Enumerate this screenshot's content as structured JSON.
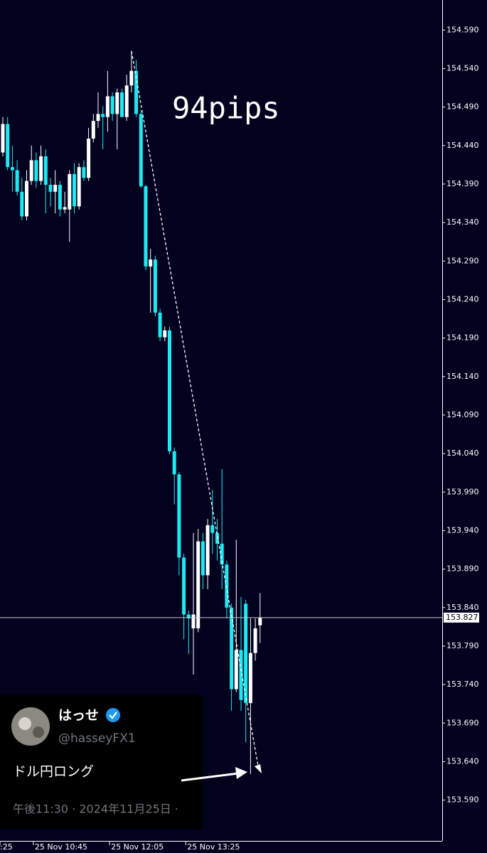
{
  "chart_data": {
    "type": "candlestick",
    "annotation": "94pips",
    "categories": [
      ":25",
      null,
      null,
      null,
      null,
      null,
      null,
      "25 Nov 10:45",
      null,
      null,
      null,
      null,
      null,
      null,
      null,
      null,
      null,
      null,
      null,
      null,
      null,
      null,
      null,
      "25 Nov 12:05",
      null,
      null,
      null,
      null,
      null,
      null,
      null,
      null,
      null,
      null,
      null,
      null,
      null,
      null,
      null,
      "25 Nov 13:25",
      null,
      null,
      null,
      null,
      null,
      null,
      null,
      null,
      null,
      null,
      null,
      null,
      null,
      null,
      null
    ],
    "open": [
      154.431,
      154.468,
      154.412,
      154.408,
      154.38,
      154.348,
      154.394,
      154.421,
      154.394,
      154.426,
      154.389,
      154.38,
      154.389,
      154.357,
      154.357,
      154.403,
      154.361,
      154.412,
      154.398,
      154.449,
      154.472,
      154.481,
      154.477,
      154.504,
      154.481,
      154.509,
      154.477,
      154.518,
      154.537,
      154.481,
      154.387,
      154.283,
      154.292,
      154.223,
      154.191,
      154.2,
      154.043,
      154.013,
      153.905,
      153.831,
      153.813,
      153.813,
      153.926,
      153.882,
      153.947,
      153.937,
      153.923,
      153.896,
      153.84,
      153.734,
      153.785,
      153.845,
      153.716,
      153.781,
      153.817
    ],
    "high": [
      154.477,
      154.477,
      154.44,
      154.421,
      154.398,
      154.408,
      154.44,
      154.431,
      154.44,
      154.435,
      154.398,
      154.408,
      154.394,
      154.38,
      154.408,
      154.417,
      154.417,
      154.421,
      154.463,
      154.481,
      154.509,
      154.491,
      154.537,
      154.509,
      154.514,
      154.514,
      154.532,
      154.563,
      154.551,
      154.486,
      154.389,
      154.306,
      154.297,
      154.228,
      154.205,
      154.205,
      154.048,
      154.016,
      153.91,
      153.836,
      153.937,
      153.942,
      153.937,
      153.955,
      153.993,
      153.955,
      154.02,
      153.901,
      153.845,
      153.928,
      153.854,
      153.85,
      153.826,
      153.826,
      153.859
    ],
    "low": [
      154.426,
      154.408,
      154.38,
      154.375,
      154.343,
      154.343,
      154.389,
      154.385,
      154.389,
      154.352,
      154.361,
      154.352,
      154.348,
      154.352,
      154.315,
      154.352,
      154.357,
      154.394,
      154.394,
      154.444,
      154.463,
      154.435,
      154.458,
      154.472,
      154.435,
      154.477,
      154.472,
      154.509,
      154.477,
      154.385,
      154.278,
      154.223,
      154.218,
      154.186,
      154.186,
      154.039,
      153.974,
      153.882,
      153.799,
      153.78,
      153.753,
      153.808,
      153.864,
      153.864,
      153.91,
      153.901,
      153.864,
      153.826,
      153.706,
      153.73,
      153.706,
      153.665,
      153.624,
      153.771,
      153.794
    ],
    "close": [
      154.468,
      154.412,
      154.408,
      154.38,
      154.348,
      154.394,
      154.421,
      154.394,
      154.426,
      154.389,
      154.38,
      154.389,
      154.357,
      154.36,
      154.403,
      154.361,
      154.412,
      154.398,
      154.449,
      154.472,
      154.481,
      154.477,
      154.504,
      154.481,
      154.509,
      154.477,
      154.518,
      154.537,
      154.481,
      154.387,
      154.283,
      154.292,
      154.223,
      154.191,
      154.2,
      154.043,
      154.013,
      153.905,
      153.831,
      153.826,
      153.831,
      153.926,
      153.882,
      153.947,
      153.937,
      153.923,
      153.896,
      153.84,
      153.734,
      153.785,
      153.72,
      153.716,
      153.781,
      153.813,
      153.827
    ],
    "up_color": "#ffffff",
    "down_color": "#1de9f2",
    "current_price": 153.827,
    "ylim": [
      153.537,
      154.629
    ],
    "yticks": [
      {
        "value": 154.59,
        "label": "154.590"
      },
      {
        "value": 154.54,
        "label": "154.540"
      },
      {
        "value": 154.49,
        "label": "154.490"
      },
      {
        "value": 154.44,
        "label": "154.440"
      },
      {
        "value": 154.39,
        "label": "154.390"
      },
      {
        "value": 154.34,
        "label": "154.340"
      },
      {
        "value": 154.29,
        "label": "154.290"
      },
      {
        "value": 154.24,
        "label": "154.240"
      },
      {
        "value": 154.19,
        "label": "154.190"
      },
      {
        "value": 154.14,
        "label": "154.140"
      },
      {
        "value": 154.09,
        "label": "154.090"
      },
      {
        "value": 154.04,
        "label": "154.040"
      },
      {
        "value": 153.99,
        "label": "153.990"
      },
      {
        "value": 153.94,
        "label": "153.940"
      },
      {
        "value": 153.89,
        "label": "153.890"
      },
      {
        "value": 153.84,
        "label": "153.840"
      },
      {
        "value": 153.79,
        "label": "153.790"
      },
      {
        "value": 153.74,
        "label": "153.740"
      },
      {
        "value": 153.69,
        "label": "153.690"
      },
      {
        "value": 153.64,
        "label": "153.640"
      },
      {
        "value": 153.59,
        "label": "153.590"
      }
    ]
  },
  "tweet": {
    "name": "はっせ",
    "handle": "@hasseyFX1",
    "text": "ドル円ロング",
    "timestamp": "午後11:30 · 2024年11月25日 ·"
  }
}
